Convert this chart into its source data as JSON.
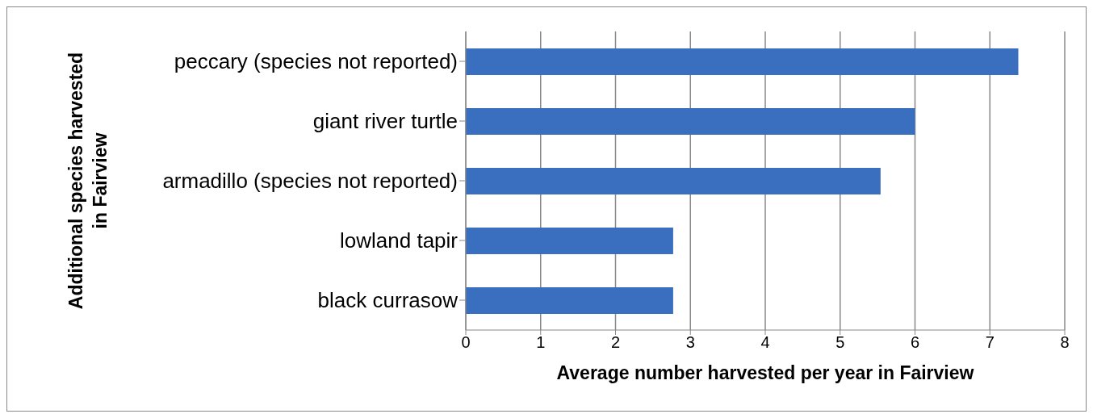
{
  "chart_data": {
    "type": "bar",
    "orientation": "horizontal",
    "xlabel": "Average number harvested per year in Fairview",
    "ylabel": "Additional species harvested in Fairview",
    "categories": [
      "peccary (species not reported)",
      "giant river turtle",
      "armadillo (species not reported)",
      "lowland tapir",
      "black currasow"
    ],
    "values": [
      7.38,
      6.0,
      5.54,
      2.77,
      2.77
    ],
    "color": "#3a6fbf",
    "xlim": [
      0,
      8
    ],
    "xticks": [
      0,
      1,
      2,
      3,
      4,
      5,
      6,
      7,
      8
    ],
    "grid": "x"
  }
}
